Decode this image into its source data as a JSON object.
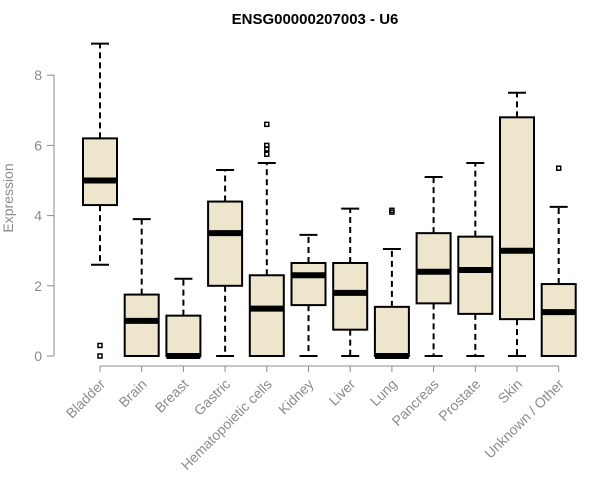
{
  "chart_data": {
    "type": "boxplot",
    "title": "ENSG00000207003 - U6",
    "ylabel": "Expression",
    "xlabel": "",
    "ylim": [
      0,
      9
    ],
    "yticks": [
      0,
      2,
      4,
      6,
      8
    ],
    "box_fill": "#ede6cd",
    "box_stroke": "#000000",
    "axis_color": "#8c8c8c",
    "grid": false,
    "categories": [
      "Bladder",
      "Brain",
      "Breast",
      "Gastric",
      "Hematopoietic cells",
      "Kidney",
      "Liver",
      "Lung",
      "Pancreas",
      "Prostate",
      "Skin",
      "Unknown / Other"
    ],
    "boxes": [
      {
        "min": 2.6,
        "q1": 4.3,
        "median": 5.0,
        "q3": 6.2,
        "max": 8.9,
        "outliers": [
          0.3,
          0.0
        ]
      },
      {
        "min": 0.0,
        "q1": 0.0,
        "median": 1.0,
        "q3": 1.75,
        "max": 3.9,
        "outliers": []
      },
      {
        "min": 0.0,
        "q1": 0.0,
        "median": 0.0,
        "q3": 1.15,
        "max": 2.2,
        "outliers": []
      },
      {
        "min": 0.0,
        "q1": 2.0,
        "median": 3.5,
        "q3": 4.4,
        "max": 5.3,
        "outliers": []
      },
      {
        "min": 0.0,
        "q1": 0.0,
        "median": 1.35,
        "q3": 2.3,
        "max": 5.5,
        "outliers": [
          5.75,
          5.9,
          6.0,
          6.6
        ]
      },
      {
        "min": 0.0,
        "q1": 1.45,
        "median": 2.3,
        "q3": 2.65,
        "max": 3.45,
        "outliers": []
      },
      {
        "min": 0.0,
        "q1": 0.75,
        "median": 1.8,
        "q3": 2.65,
        "max": 4.2,
        "outliers": []
      },
      {
        "min": 0.0,
        "q1": 0.0,
        "median": 0.0,
        "q3": 1.4,
        "max": 3.05,
        "outliers": [
          4.1,
          4.15
        ]
      },
      {
        "min": 0.0,
        "q1": 1.5,
        "median": 2.4,
        "q3": 3.5,
        "max": 5.1,
        "outliers": []
      },
      {
        "min": 0.0,
        "q1": 1.2,
        "median": 2.45,
        "q3": 3.4,
        "max": 5.5,
        "outliers": []
      },
      {
        "min": 0.0,
        "q1": 1.05,
        "median": 3.0,
        "q3": 6.8,
        "max": 7.5,
        "outliers": []
      },
      {
        "min": 0.0,
        "q1": 0.0,
        "median": 1.25,
        "q3": 2.05,
        "max": 4.25,
        "outliers": [
          5.35
        ]
      }
    ]
  }
}
